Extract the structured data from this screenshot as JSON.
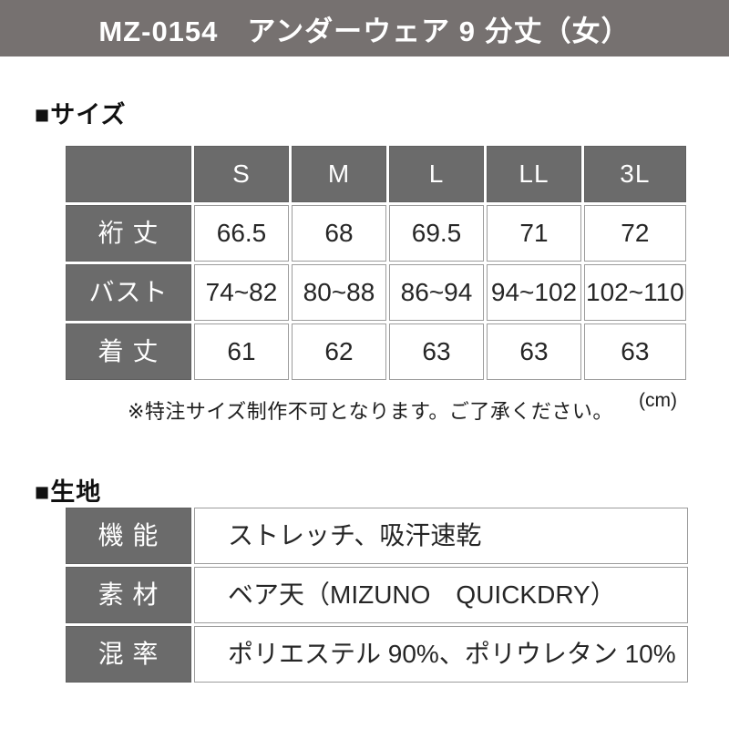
{
  "colors": {
    "header_bg": "#767170",
    "cell_gray": "#6b6b6b",
    "grid_line": "#9c9c9c"
  },
  "header": {
    "title": "MZ-0154　アンダーウェア 9 分丈（女）"
  },
  "size": {
    "heading": "■サイズ",
    "columns": [
      "S",
      "M",
      "L",
      "LL",
      "3L"
    ],
    "rows": [
      {
        "label": "裄 丈",
        "values": [
          "66.5",
          "68",
          "69.5",
          "71",
          "72"
        ]
      },
      {
        "label": "バスト",
        "values": [
          "74~82",
          "80~88",
          "86~94",
          "94~102",
          "102~110"
        ]
      },
      {
        "label": "着 丈",
        "values": [
          "61",
          "62",
          "63",
          "63",
          "63"
        ]
      }
    ],
    "note": "※特注サイズ制作不可となります。ご了承ください。",
    "unit": "(cm)"
  },
  "fabric": {
    "heading": "■生地",
    "rows": [
      {
        "label": "機 能",
        "value": "ストレッチ、吸汗速乾"
      },
      {
        "label": "素 材",
        "value": "ベア天（MIZUNO　QUICKDRY）"
      },
      {
        "label": "混 率",
        "value": "ポリエステル 90%、ポリウレタン 10%"
      }
    ]
  }
}
